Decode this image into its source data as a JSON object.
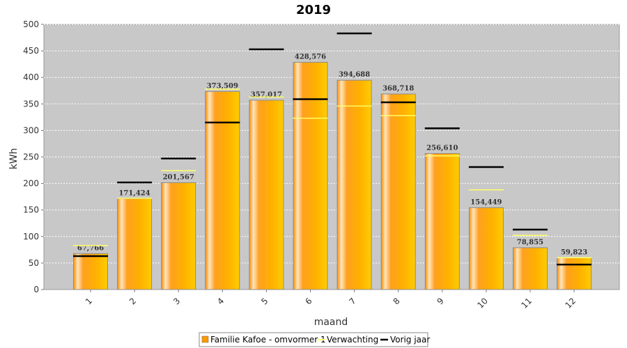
{
  "chart_data": {
    "type": "bar",
    "title": "2019",
    "xlabel": "maand",
    "ylabel": "kWh",
    "ylim": [
      0,
      500
    ],
    "yticks": [
      0,
      50,
      100,
      150,
      200,
      250,
      300,
      350,
      400,
      450,
      500
    ],
    "categories": [
      "1",
      "2",
      "3",
      "4",
      "5",
      "6",
      "7",
      "8",
      "9",
      "10",
      "11",
      "12"
    ],
    "series": [
      {
        "name": "Familie Kafoe - omvormer 1",
        "type": "bar",
        "color": "#ff9900",
        "values": [
          67.766,
          171.424,
          201.567,
          373.509,
          357.017,
          428.576,
          394.688,
          368.718,
          256.61,
          154.449,
          78.855,
          59.823
        ],
        "labels": [
          "67,766",
          "171,424",
          "201,567",
          "373,509",
          "357,017",
          "428,576",
          "394,688",
          "368,718",
          "256,610",
          "154,449",
          "78,855",
          "59,823"
        ]
      },
      {
        "name": "Verwachting",
        "type": "marker",
        "color": "#ffff66",
        "values": [
          83,
          172,
          224,
          378,
          363,
          323,
          346,
          328,
          252,
          188,
          102,
          60
        ]
      },
      {
        "name": "Vorig jaar",
        "type": "marker",
        "color": "#000000",
        "values": [
          63,
          202,
          247,
          315,
          453,
          359,
          483,
          353,
          304,
          231,
          113,
          47
        ]
      }
    ],
    "grid": true,
    "legend_position": "bottom"
  }
}
